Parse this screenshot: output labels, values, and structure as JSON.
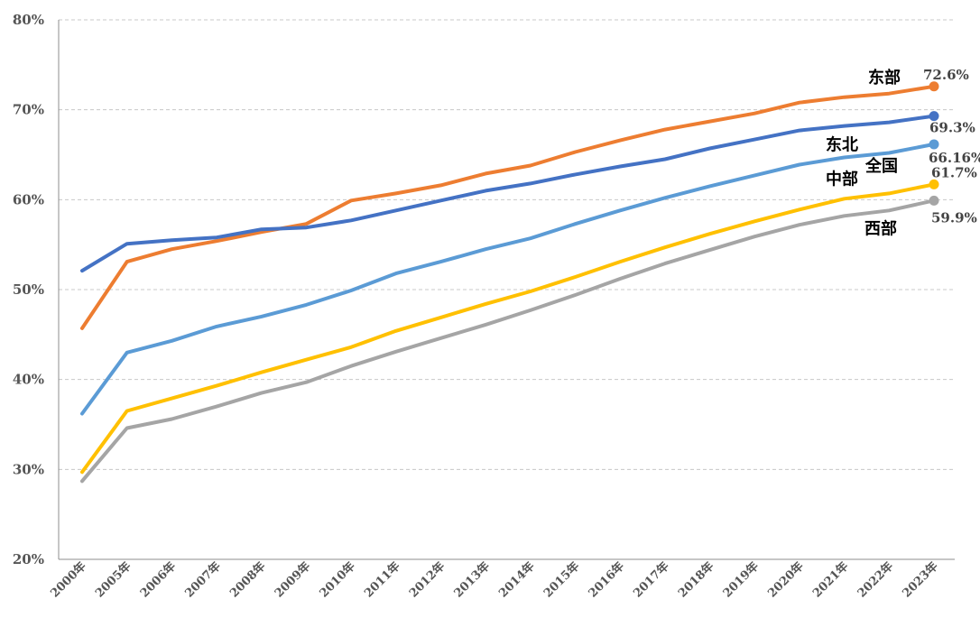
{
  "chart_data": {
    "type": "line",
    "title": "",
    "xlabel": "",
    "ylabel": "",
    "ylim": [
      20,
      80
    ],
    "yticks": [
      "20%",
      "30%",
      "40%",
      "50%",
      "60%",
      "70%",
      "80%"
    ],
    "ytick_values": [
      20,
      30,
      40,
      50,
      60,
      70,
      80
    ],
    "grid": "horizontal dashed",
    "categories": [
      "2000年",
      "2005年",
      "2006年",
      "2007年",
      "2008年",
      "2009年",
      "2010年",
      "2011年",
      "2012年",
      "2013年",
      "2014年",
      "2015年",
      "2016年",
      "2017年",
      "2018年",
      "2019年",
      "2020年",
      "2021年",
      "2022年",
      "2023年"
    ],
    "series": [
      {
        "name": "东部",
        "color": "#ED7D31",
        "end_label": "72.6%",
        "values": [
          45.7,
          53.1,
          54.5,
          55.4,
          56.4,
          57.3,
          59.9,
          60.7,
          61.6,
          62.9,
          63.8,
          65.3,
          66.6,
          67.8,
          68.7,
          69.6,
          70.8,
          71.4,
          71.8,
          72.6
        ]
      },
      {
        "name": "东北",
        "color": "#4472C4",
        "end_label": "69.3%",
        "values": [
          52.1,
          55.1,
          55.5,
          55.8,
          56.7,
          56.9,
          57.7,
          58.8,
          59.9,
          61.0,
          61.8,
          62.8,
          63.7,
          64.5,
          65.7,
          66.7,
          67.7,
          68.2,
          68.6,
          69.3
        ]
      },
      {
        "name": "全国",
        "color": "#5B9BD5",
        "end_label": "66.16%",
        "values": [
          36.2,
          43.0,
          44.3,
          45.9,
          47.0,
          48.3,
          49.9,
          51.8,
          53.1,
          54.5,
          55.7,
          57.3,
          58.8,
          60.2,
          61.5,
          62.7,
          63.9,
          64.7,
          65.2,
          66.16
        ]
      },
      {
        "name": "中部",
        "color": "#FFC000",
        "end_label": "61.7%",
        "values": [
          29.7,
          36.5,
          37.9,
          39.3,
          40.8,
          42.2,
          43.6,
          45.4,
          46.9,
          48.4,
          49.8,
          51.4,
          53.1,
          54.7,
          56.2,
          57.6,
          58.9,
          60.1,
          60.7,
          61.7
        ]
      },
      {
        "name": "西部",
        "color": "#A5A5A5",
        "end_label": "59.9%",
        "values": [
          28.7,
          34.6,
          35.6,
          37.0,
          38.5,
          39.7,
          41.5,
          43.1,
          44.6,
          46.1,
          47.7,
          49.4,
          51.2,
          52.9,
          54.4,
          55.9,
          57.2,
          58.2,
          58.8,
          59.9
        ]
      }
    ]
  }
}
